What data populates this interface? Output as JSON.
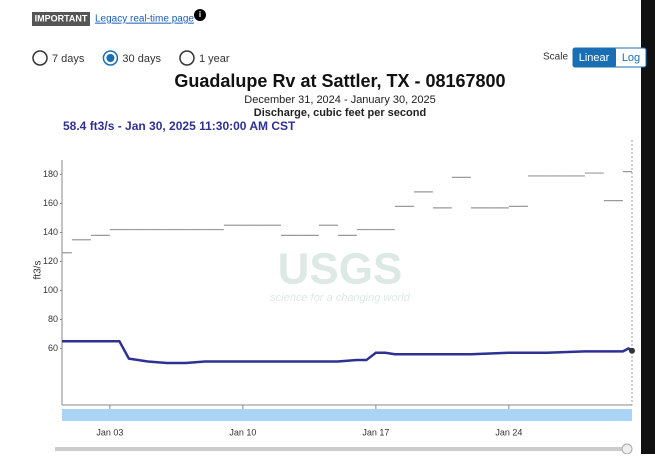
{
  "ui": {
    "badge": "IMPORTANT",
    "legacy_link": "Legacy real-time page",
    "info": "i",
    "periods": [
      "7 days",
      "30 days",
      "1 year"
    ],
    "selected_period": 1,
    "scale_label": "Scale",
    "scale_options": [
      "Linear",
      "Log"
    ],
    "selected_scale": 0,
    "tooltip": "58.4 ft3/s - Jan 30, 2025 11:30:00 AM CST",
    "watermark": "USGS",
    "watermark_tagline": "science for a changing world"
  },
  "chart_data": {
    "type": "line",
    "title": "Guadalupe Rv at Sattler, TX - 08167800",
    "subtitle": "December 31, 2024 - January 30, 2025",
    "subtitle2": "Discharge, cubic feet per second",
    "ylabel": "ft3/s",
    "xlim": [
      0.48,
      30.48
    ],
    "ylim": [
      21,
      190
    ],
    "yticks": [
      60,
      80,
      100,
      120,
      140,
      160,
      180
    ],
    "xticks": [
      {
        "value": 3,
        "label": "Jan 03"
      },
      {
        "value": 10,
        "label": "Jan 10"
      },
      {
        "value": 17,
        "label": "Jan 17"
      },
      {
        "value": 24,
        "label": "Jan 24"
      }
    ],
    "series": [
      {
        "color": "#2e3192",
        "style": "line",
        "x": [
          0.48,
          1,
          2,
          3,
          3.5,
          4,
          5,
          6,
          7,
          8,
          9,
          10,
          11,
          12,
          13,
          14,
          15,
          16,
          16.5,
          17,
          17.5,
          18,
          20,
          22,
          24,
          26,
          28,
          30,
          30.3,
          30.48
        ],
        "values": [
          65,
          65,
          65,
          65,
          65,
          53,
          51,
          50,
          50,
          51,
          51,
          51,
          51,
          51,
          51,
          51,
          51,
          52,
          52,
          57,
          57,
          56,
          56,
          56,
          57,
          57,
          58,
          58,
          60,
          58.4
        ]
      },
      {
        "color": "#999999",
        "style": "step",
        "x": [
          0,
          1,
          2,
          3,
          4,
          5,
          6,
          7,
          8,
          9,
          10,
          11,
          12,
          13,
          14,
          15,
          16,
          17,
          18,
          19,
          20,
          21,
          22,
          23,
          24,
          25,
          26,
          27,
          28,
          29,
          30
        ],
        "values": [
          126,
          135,
          138,
          142,
          142,
          142,
          142,
          142,
          142,
          145,
          145,
          145,
          138,
          138,
          145,
          138,
          142,
          142,
          158,
          168,
          157,
          178,
          157,
          157,
          158,
          179,
          179,
          179,
          181,
          162,
          182
        ]
      }
    ]
  }
}
